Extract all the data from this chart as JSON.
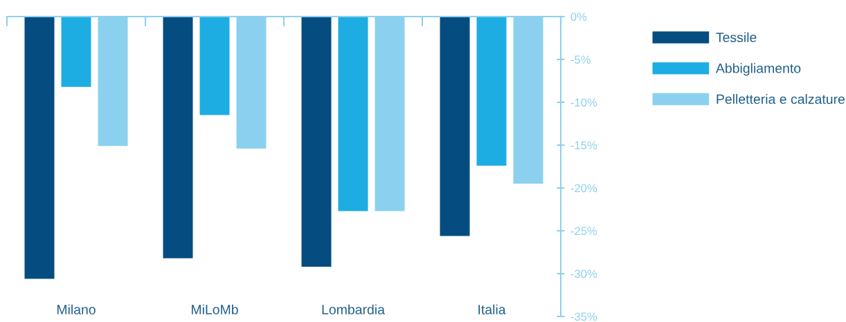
{
  "chart_data": {
    "type": "bar",
    "categories": [
      "Milano",
      "MiLoMb",
      "Lombardia",
      "Italia"
    ],
    "series": [
      {
        "name": "Tessile",
        "color": "#054d80",
        "values": [
          -30.6,
          -28.2,
          -29.2,
          -25.6
        ]
      },
      {
        "name": "Abbigliamento",
        "color": "#1dade2",
        "values": [
          -8.2,
          -11.5,
          -22.7,
          -17.4
        ]
      },
      {
        "name": "Pelletteria e calzature",
        "color": "#8bd1ef",
        "values": [
          -15.1,
          -15.4,
          -22.7,
          -19.5
        ]
      }
    ],
    "ylim": [
      -35,
      0
    ],
    "yticks": [
      {
        "value": 0,
        "label": "0%"
      },
      {
        "value": -5,
        "label": "-5%"
      },
      {
        "value": -10,
        "label": "-10%"
      },
      {
        "value": -15,
        "label": "-15%"
      },
      {
        "value": -20,
        "label": "-20%"
      },
      {
        "value": -25,
        "label": "-25%"
      },
      {
        "value": -30,
        "label": "-30%"
      },
      {
        "value": -35,
        "label": "-35%"
      }
    ],
    "grid": false,
    "legend": "right"
  }
}
